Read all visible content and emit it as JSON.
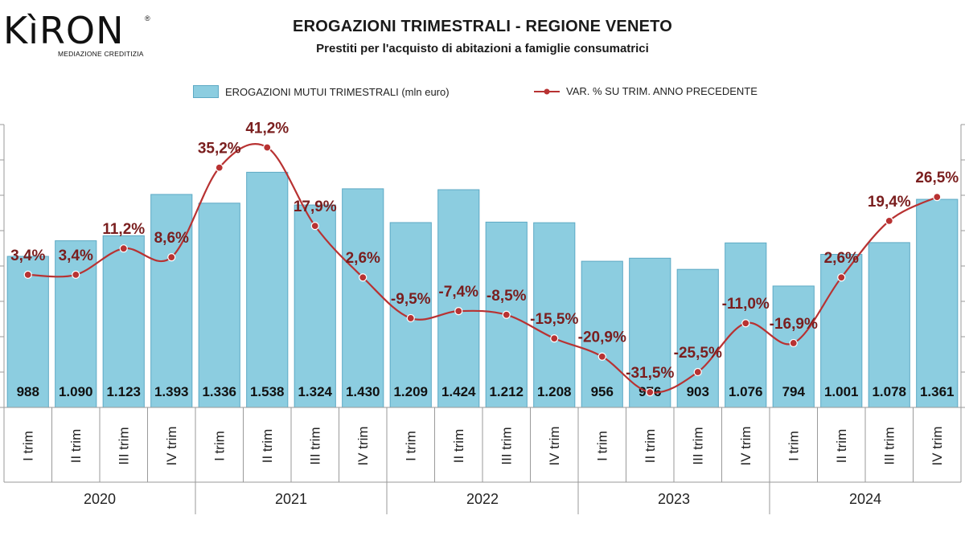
{
  "brand": {
    "name": "KìRON",
    "registered": "®",
    "tagline": "MEDIAZIONE CREDITIZIA"
  },
  "colors": {
    "bar": "#8ccde0",
    "bar_stroke": "#5da9c4",
    "line": "#b83232",
    "label_line": "#7a1e1e"
  },
  "chart_data": {
    "type": "bar",
    "title": "EROGAZIONI TRIMESTRALI - REGIONE VENETO",
    "subtitle": "Prestiti per l'acquisto di abitazioni a famiglie consumatrici",
    "categories": [
      "I trim",
      "II trim",
      "III trim",
      "IV trim",
      "I trim",
      "II trim",
      "III trim",
      "IV trim",
      "I trim",
      "II trim",
      "III trim",
      "IV trim",
      "I trim",
      "II trim",
      "III trim",
      "IV trim",
      "I trim",
      "II trim",
      "III trim",
      "IV trim"
    ],
    "groups": [
      {
        "label": "2020",
        "count": 4
      },
      {
        "label": "2021",
        "count": 4
      },
      {
        "label": "2022",
        "count": 4
      },
      {
        "label": "2023",
        "count": 4
      },
      {
        "label": "2024",
        "count": 4
      }
    ],
    "series": [
      {
        "name": "EROGAZIONI MUTUI TRIMESTRALI (mln euro)",
        "type": "bar",
        "values": [
          988,
          1090,
          1123,
          1393,
          1336,
          1538,
          1324,
          1430,
          1209,
          1424,
          1212,
          1208,
          956,
          976,
          903,
          1076,
          794,
          1001,
          1078,
          1361
        ],
        "labels": [
          "988",
          "1.090",
          "1.123",
          "1.393",
          "1.336",
          "1.538",
          "1.324",
          "1.430",
          "1.209",
          "1.424",
          "1.212",
          "1.208",
          "956",
          "976",
          "903",
          "1.076",
          "794",
          "1.001",
          "1.078",
          "1.361"
        ]
      },
      {
        "name": "VAR. % SU TRIM. ANNO PRECEDENTE",
        "type": "line",
        "values": [
          3.4,
          3.4,
          11.2,
          8.6,
          35.2,
          41.2,
          17.9,
          2.6,
          -9.5,
          -7.4,
          -8.5,
          -15.5,
          -20.9,
          -31.5,
          -25.5,
          -11.0,
          -16.9,
          2.6,
          19.4,
          26.5
        ],
        "labels": [
          "3,4%",
          "3,4%",
          "11,2%",
          "8,6%",
          "35,2%",
          "41,2%",
          "17,9%",
          "2,6%",
          "-9,5%",
          "-7,4%",
          "-8,5%",
          "-15,5%",
          "-20,9%",
          "-31,5%",
          "-25,5%",
          "-11,0%",
          "-16,9%",
          "2,6%",
          "19,4%",
          "26,5%"
        ]
      }
    ],
    "bar_ylim": [
      0,
      1850
    ],
    "line_ylim": [
      -36,
      48
    ],
    "grid": false,
    "legend_position": "top"
  }
}
